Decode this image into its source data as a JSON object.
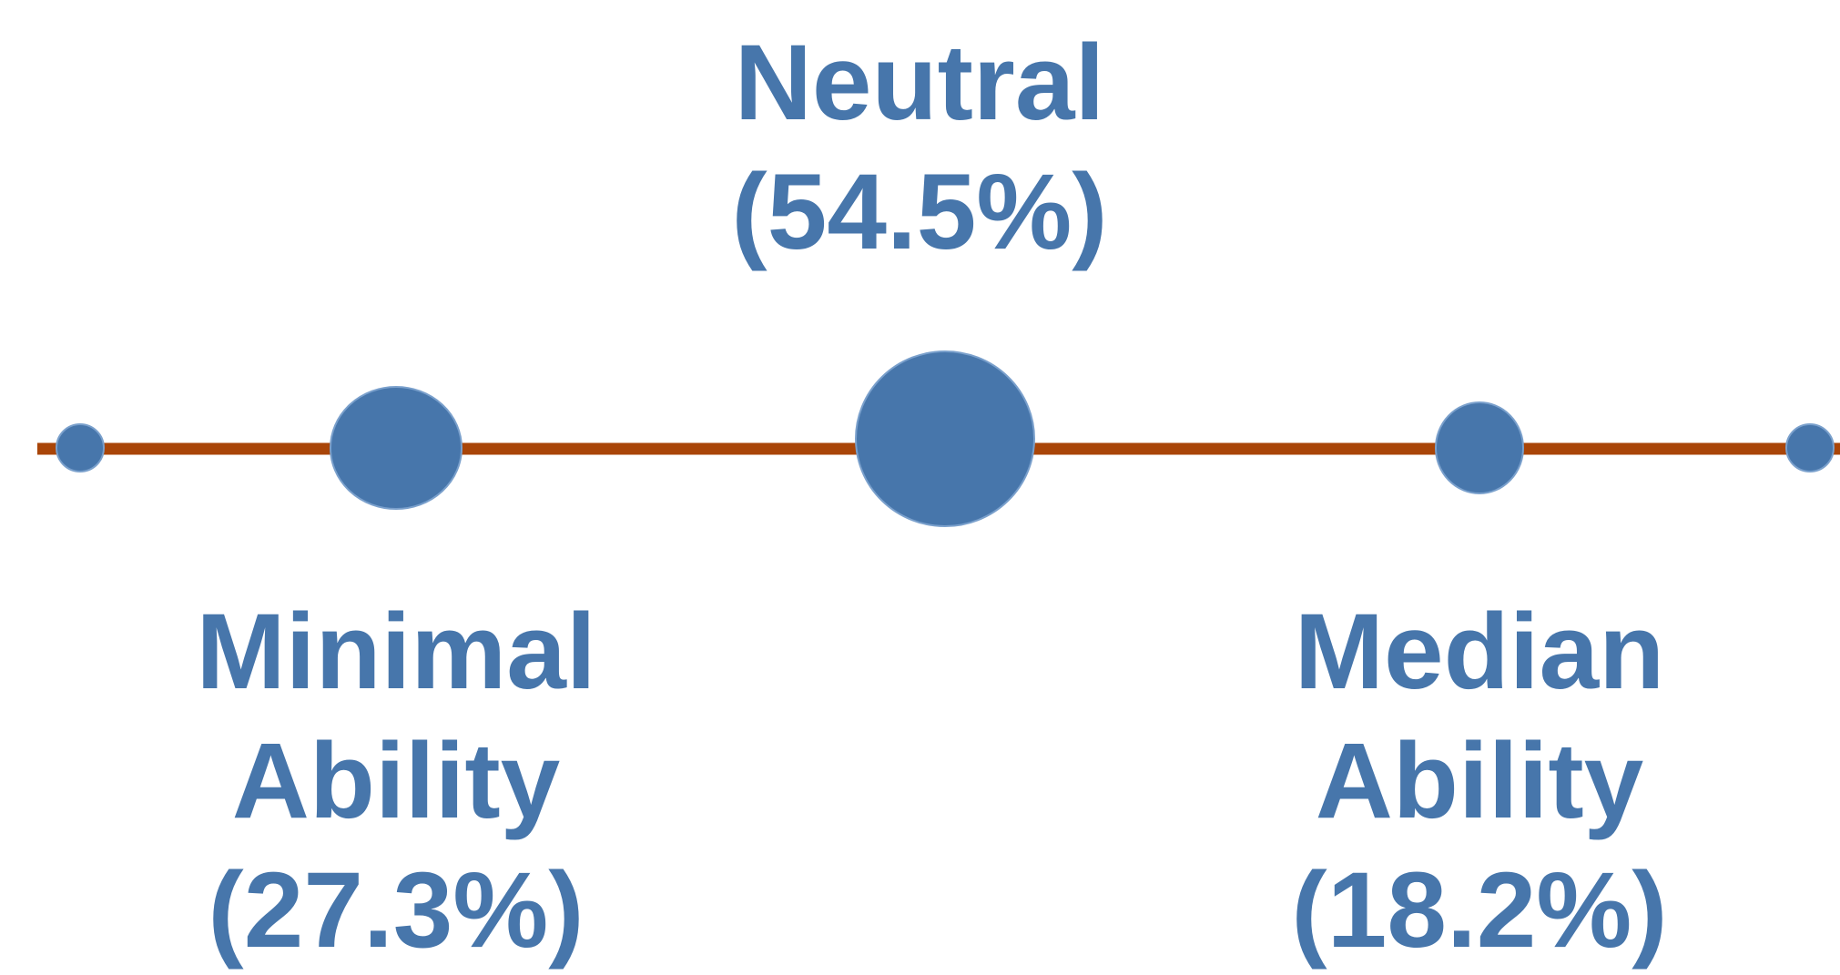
{
  "colors": {
    "text": "#4776ab",
    "dot": "#4776ab",
    "dot_stroke": "#7aa0cc",
    "axis_line": "#a94508"
  },
  "labels": {
    "neutral": {
      "name": "Neutral",
      "percent": "(54.5%)"
    },
    "minimal": {
      "name_line1": "Minimal",
      "name_line2": "Ability",
      "percent": "(27.3%)"
    },
    "median": {
      "name_line1": "Median",
      "name_line2": "Ability",
      "percent": "(18.2%)"
    }
  },
  "points": [
    {
      "name": "left-end",
      "share": 0
    },
    {
      "name": "minimal",
      "share": 27.3
    },
    {
      "name": "neutral",
      "share": 54.5
    },
    {
      "name": "median",
      "share": 18.2
    },
    {
      "name": "right-end",
      "share": 0
    }
  ]
}
